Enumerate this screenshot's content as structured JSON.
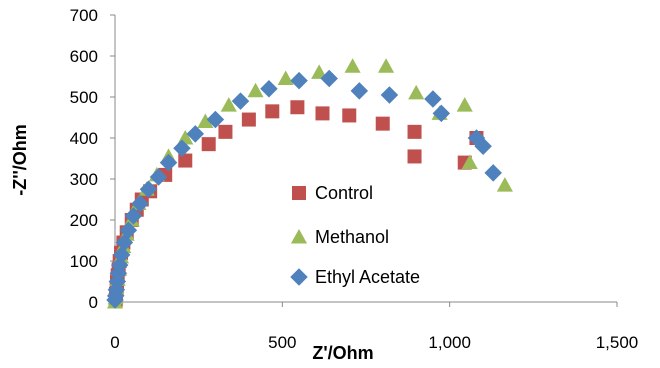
{
  "chart_data": {
    "type": "scatter",
    "xlabel": "Z'/Ohm",
    "ylabel": "-Z''/Ohm",
    "xlim": [
      0,
      1500
    ],
    "ylim": [
      0,
      700
    ],
    "xticks": [
      "0",
      "500",
      "1,000",
      "1,500"
    ],
    "xtick_values": [
      0,
      500,
      1000,
      1500
    ],
    "yticks": [
      "0",
      "100",
      "200",
      "300",
      "400",
      "500",
      "600",
      "700"
    ],
    "ytick_values": [
      0,
      100,
      200,
      300,
      400,
      500,
      600,
      700
    ],
    "grid": false,
    "legend_position": "center",
    "series": [
      {
        "name": "Control",
        "marker": "square",
        "color": "#C0504D",
        "points": [
          [
            2,
            5
          ],
          [
            3,
            20
          ],
          [
            5,
            35
          ],
          [
            6,
            50
          ],
          [
            8,
            65
          ],
          [
            11,
            80
          ],
          [
            14,
            100
          ],
          [
            18,
            120
          ],
          [
            25,
            145
          ],
          [
            35,
            170
          ],
          [
            50,
            200
          ],
          [
            65,
            225
          ],
          [
            80,
            250
          ],
          [
            105,
            270
          ],
          [
            150,
            310
          ],
          [
            210,
            345
          ],
          [
            280,
            385
          ],
          [
            330,
            415
          ],
          [
            400,
            445
          ],
          [
            470,
            465
          ],
          [
            545,
            475
          ],
          [
            620,
            460
          ],
          [
            700,
            455
          ],
          [
            800,
            435
          ],
          [
            895,
            415
          ],
          [
            895,
            355
          ],
          [
            1045,
            340
          ],
          [
            1080,
            400
          ]
        ]
      },
      {
        "name": "Methanol",
        "marker": "triangle",
        "color": "#9BBB59",
        "points": [
          [
            0,
            0
          ],
          [
            2,
            10
          ],
          [
            5,
            30
          ],
          [
            8,
            55
          ],
          [
            12,
            80
          ],
          [
            18,
            110
          ],
          [
            25,
            135
          ],
          [
            35,
            165
          ],
          [
            50,
            200
          ],
          [
            70,
            240
          ],
          [
            95,
            275
          ],
          [
            125,
            310
          ],
          [
            160,
            355
          ],
          [
            210,
            400
          ],
          [
            270,
            440
          ],
          [
            340,
            480
          ],
          [
            420,
            515
          ],
          [
            510,
            545
          ],
          [
            610,
            560
          ],
          [
            710,
            575
          ],
          [
            810,
            575
          ],
          [
            900,
            510
          ],
          [
            970,
            460
          ],
          [
            1045,
            480
          ],
          [
            1060,
            340
          ],
          [
            1165,
            285
          ]
        ]
      },
      {
        "name": "Ethyl Acetate",
        "marker": "diamond",
        "color": "#4F81BD",
        "points": [
          [
            0,
            5
          ],
          [
            2,
            15
          ],
          [
            4,
            30
          ],
          [
            7,
            50
          ],
          [
            10,
            70
          ],
          [
            14,
            90
          ],
          [
            20,
            115
          ],
          [
            28,
            145
          ],
          [
            40,
            175
          ],
          [
            55,
            210
          ],
          [
            75,
            240
          ],
          [
            100,
            275
          ],
          [
            130,
            305
          ],
          [
            160,
            340
          ],
          [
            200,
            375
          ],
          [
            240,
            410
          ],
          [
            300,
            445
          ],
          [
            375,
            490
          ],
          [
            460,
            520
          ],
          [
            550,
            540
          ],
          [
            640,
            545
          ],
          [
            730,
            515
          ],
          [
            820,
            505
          ],
          [
            950,
            495
          ],
          [
            975,
            460
          ],
          [
            1080,
            400
          ],
          [
            1100,
            380
          ],
          [
            1130,
            315
          ]
        ]
      }
    ]
  }
}
